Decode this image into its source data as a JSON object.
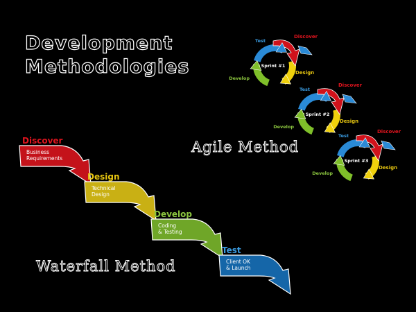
{
  "title": {
    "line1": "Development",
    "line2": "Methodologies"
  },
  "agile": {
    "label": "Agile Method",
    "cycles": [
      {
        "discover": "Discover",
        "design": "Design",
        "develop": "Develop",
        "test": "Test",
        "sprint": "Sprint #1"
      },
      {
        "discover": "Discover",
        "design": "Design",
        "develop": "Develop",
        "test": "Test",
        "sprint": "Sprint #2"
      },
      {
        "discover": "Discover",
        "design": "Design",
        "develop": "Develop",
        "test": "Test",
        "sprint": "Sprint #3"
      }
    ]
  },
  "waterfall": {
    "label": "Waterfall Method",
    "steps": [
      {
        "heading": "Discover",
        "body": [
          "Business",
          "Requirements"
        ],
        "color": "#c4121a"
      },
      {
        "heading": "Design",
        "body": [
          "Technical",
          "Design"
        ],
        "color": "#c9b014"
      },
      {
        "heading": "Develop",
        "body": [
          "Coding",
          "& Testing"
        ],
        "color": "#6fa628"
      },
      {
        "heading": "Test",
        "body": [
          "Client OK",
          "& Launch"
        ],
        "color": "#1566a8"
      }
    ]
  },
  "colors": {
    "discover": "#d0121b",
    "design": "#f0d10c",
    "develop": "#7fbf2a",
    "test": "#2a8ad6",
    "discover_text": "#e0141e",
    "design_text": "#e5c410",
    "develop_text": "#8cc63f",
    "test_text": "#3a9be0",
    "outline": "#ffffff"
  }
}
